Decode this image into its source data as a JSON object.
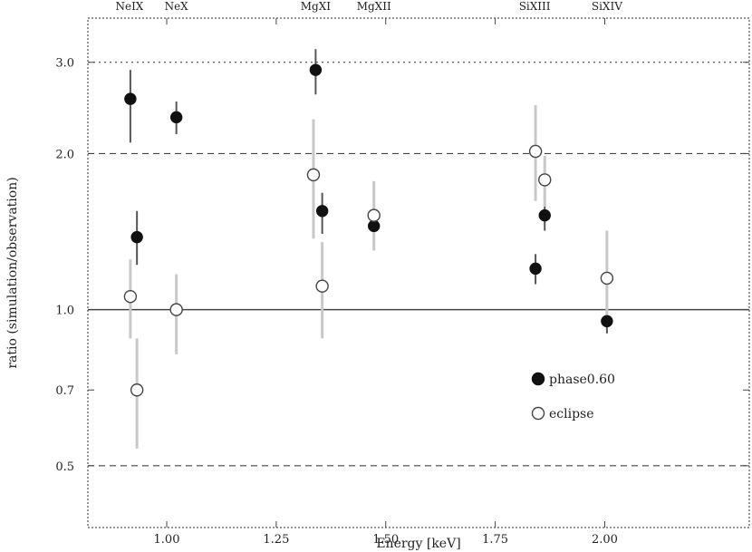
{
  "chart_data": {
    "type": "scatter",
    "xlabel": "Energy [keV]",
    "ylabel": "ratio (simulation/observation)",
    "xlim": [
      0.82,
      2.33
    ],
    "ylim": [
      0.38,
      3.65
    ],
    "ylog": true,
    "x_ticks": [
      1.0,
      1.25,
      1.5,
      1.75,
      2.0
    ],
    "x_tick_labels": [
      "1.00",
      "1.25",
      "1.50",
      "1.75",
      "2.00"
    ],
    "y_ticks": [
      0.5,
      0.7,
      1.0,
      2.0,
      3.0
    ],
    "y_tick_labels": [
      "0.5",
      "0.7",
      "1.0",
      "2.0",
      "3.0"
    ],
    "reference_lines": [
      {
        "y": 3.0,
        "style": "dotted"
      },
      {
        "y": 2.0,
        "style": "dashed"
      },
      {
        "y": 1.0,
        "style": "solid"
      },
      {
        "y": 0.5,
        "style": "dashed"
      }
    ],
    "line_labels": [
      {
        "x": 0.915,
        "label": "NeIX"
      },
      {
        "x": 1.022,
        "label": "NeX"
      },
      {
        "x": 1.34,
        "label": "MgXI"
      },
      {
        "x": 1.473,
        "label": "MgXII"
      },
      {
        "x": 1.84,
        "label": "SiXIII"
      },
      {
        "x": 2.005,
        "label": "SiXIV"
      }
    ],
    "legend": {
      "position": "lower-right"
    },
    "series": [
      {
        "name": "phase0.60",
        "marker": "filled-circle",
        "points": [
          {
            "x": 0.917,
            "y": 2.55,
            "ylo": 2.1,
            "yhi": 2.9
          },
          {
            "x": 0.932,
            "y": 1.38,
            "ylo": 1.22,
            "yhi": 1.55
          },
          {
            "x": 1.022,
            "y": 2.35,
            "ylo": 2.18,
            "yhi": 2.52
          },
          {
            "x": 1.34,
            "y": 2.9,
            "ylo": 2.6,
            "yhi": 3.18
          },
          {
            "x": 1.355,
            "y": 1.55,
            "ylo": 1.4,
            "yhi": 1.68
          },
          {
            "x": 1.473,
            "y": 1.45,
            "ylo": 1.3,
            "yhi": 1.6
          },
          {
            "x": 1.842,
            "y": 1.2,
            "ylo": 1.12,
            "yhi": 1.28
          },
          {
            "x": 1.863,
            "y": 1.52,
            "ylo": 1.42,
            "yhi": 1.62
          },
          {
            "x": 2.005,
            "y": 0.95,
            "ylo": 0.9,
            "yhi": 1.01
          }
        ]
      },
      {
        "name": "eclipse",
        "marker": "open-circle",
        "points": [
          {
            "x": 0.917,
            "y": 1.06,
            "ylo": 0.88,
            "yhi": 1.25
          },
          {
            "x": 0.932,
            "y": 0.7,
            "ylo": 0.54,
            "yhi": 0.88
          },
          {
            "x": 1.022,
            "y": 1.0,
            "ylo": 0.82,
            "yhi": 1.17
          },
          {
            "x": 1.335,
            "y": 1.82,
            "ylo": 1.37,
            "yhi": 2.33
          },
          {
            "x": 1.355,
            "y": 1.11,
            "ylo": 0.88,
            "yhi": 1.35
          },
          {
            "x": 1.473,
            "y": 1.52,
            "ylo": 1.3,
            "yhi": 1.77
          },
          {
            "x": 1.842,
            "y": 2.02,
            "ylo": 1.62,
            "yhi": 2.48
          },
          {
            "x": 1.863,
            "y": 1.78,
            "ylo": 1.58,
            "yhi": 1.98
          },
          {
            "x": 2.005,
            "y": 1.15,
            "ylo": 0.94,
            "yhi": 1.42
          }
        ]
      }
    ]
  }
}
